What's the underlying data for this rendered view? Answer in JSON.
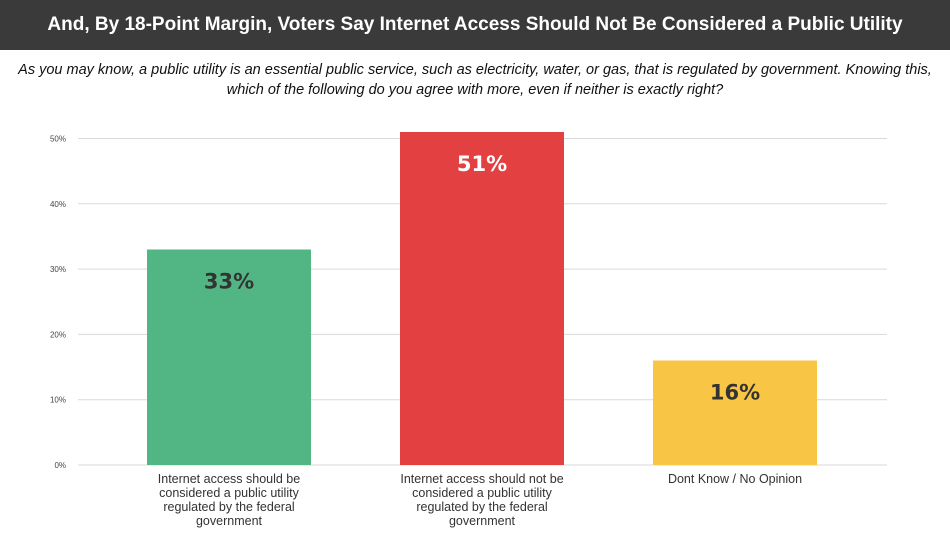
{
  "header": {
    "title": "And, By 18-Point Margin, Voters Say Internet Access Should Not Be Considered a Public Utility"
  },
  "question": {
    "line1": "As you may know, a public utility is an essential public service, such as electricity, water, or gas, that is regulated by government. Knowing this,",
    "line2": "which of the following do you agree with more, even if neither is exactly right?"
  },
  "chart_data": {
    "type": "bar",
    "categories": [
      "Internet access should be considered a public utility regulated by the federal government",
      "Internet access should not be considered a public utility regulated by the federal government",
      "Dont Know / No Opinion"
    ],
    "values": [
      33,
      51,
      16
    ],
    "data_labels": [
      "33%",
      "51%",
      "16%"
    ],
    "colors": [
      "#52b584",
      "#e34141",
      "#f8c544"
    ],
    "label_colors": [
      "#333333",
      "#ffffff",
      "#333333"
    ],
    "yticks": [
      0,
      10,
      20,
      30,
      40,
      50
    ],
    "ytick_labels": [
      "0%",
      "10%",
      "20%",
      "30%",
      "40%",
      "50%"
    ],
    "ylim": [
      0,
      51
    ],
    "grid": true
  }
}
